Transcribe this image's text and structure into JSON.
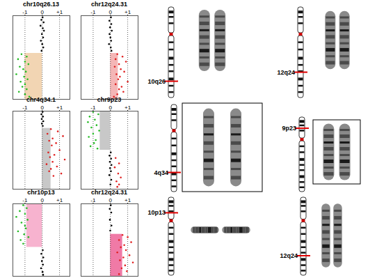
{
  "chart_data": [
    {
      "type": "scatter",
      "title": "chr10q26.13",
      "xlim": [
        -1.7,
        1.6
      ],
      "xticks": [
        -1,
        0,
        {
          "value": 1,
          "label": "+1"
        }
      ],
      "ylim": [
        0,
        100
      ],
      "grid": true,
      "tick_labels": "x",
      "segments": [
        {
          "x0": -1.0,
          "x1": 0,
          "y0": 0,
          "y1": 55,
          "color": "#f2d5b3"
        }
      ],
      "series": [
        {
          "color": "#000000",
          "x": [
            0.02,
            -0.05,
            0.08,
            -0.1,
            0.03,
            0.1,
            -0.02,
            0.05,
            -0.08,
            0.0,
            0.06,
            -0.04
          ],
          "values": [
            98,
            95,
            92,
            88,
            85,
            82,
            78,
            74,
            70,
            66,
            62,
            58
          ]
        },
        {
          "color": "#22bb22",
          "x": [
            -1.2,
            -0.9,
            -1.4,
            -1.0,
            -0.8,
            -1.3,
            -1.1,
            -0.95,
            -1.5,
            -1.05,
            -0.85,
            -1.25,
            -1.0,
            -1.15,
            -0.9,
            -1.35,
            -1.0,
            -0.75
          ],
          "values": [
            54,
            51,
            48,
            45,
            42,
            39,
            36,
            33,
            30,
            27,
            24,
            21,
            18,
            15,
            12,
            9,
            6,
            3
          ]
        }
      ]
    },
    {
      "type": "scatter",
      "title": "chr12q24.31",
      "xlim": [
        -1.7,
        1.6
      ],
      "xticks": [
        -1,
        0,
        {
          "value": 1,
          "label": "+1"
        }
      ],
      "ylim": [
        0,
        100
      ],
      "grid": true,
      "tick_labels": "x",
      "segments": [
        {
          "x0": 0,
          "x1": 0.45,
          "y0": 0,
          "y1": 55,
          "color": "#f4b6b6"
        }
      ],
      "series": [
        {
          "color": "#000000",
          "x": [
            0.03,
            -0.06,
            0.05,
            -0.02,
            0.08,
            -0.05,
            0.0,
            0.04,
            -0.08,
            0.02,
            0.06
          ],
          "values": [
            98,
            94,
            90,
            86,
            82,
            78,
            74,
            70,
            66,
            62,
            58
          ]
        },
        {
          "color": "#e02020",
          "x": [
            0.4,
            0.7,
            0.3,
            0.9,
            0.5,
            0.25,
            0.6,
            0.8,
            0.35,
            0.55,
            0.45,
            1.0,
            0.3,
            0.65,
            0.5,
            0.75,
            0.4,
            0.2
          ],
          "values": [
            54,
            51,
            48,
            45,
            42,
            39,
            36,
            33,
            30,
            27,
            24,
            21,
            18,
            15,
            12,
            9,
            6,
            3
          ]
        }
      ]
    },
    {
      "type": "scatter",
      "title": "chr4q34.1",
      "xlim": [
        -1.7,
        1.6
      ],
      "xticks": [
        -1,
        0,
        {
          "value": 1,
          "label": "+1"
        }
      ],
      "ylim": [
        0,
        100
      ],
      "grid": true,
      "tick_labels": "x",
      "segments": [
        {
          "x0": 0,
          "x1": 0.5,
          "y0": 0,
          "y1": 78,
          "color": "#c8c8c8"
        }
      ],
      "series": [
        {
          "color": "#000000",
          "x": [
            0.02,
            -0.05,
            0.04,
            -0.03,
            0.06,
            -0.02,
            0.03
          ],
          "values": [
            99,
            96,
            93,
            90,
            87,
            84,
            81
          ]
        },
        {
          "color": "#e02020",
          "x": [
            0.5,
            0.9,
            0.3,
            1.2,
            0.6,
            0.4,
            0.8,
            0.55,
            1.0,
            0.35,
            0.7,
            0.45,
            1.3,
            0.6,
            0.25,
            0.85,
            0.5,
            0.4,
            1.1,
            0.65
          ],
          "values": [
            77,
            74,
            71,
            68,
            65,
            62,
            59,
            56,
            50,
            47,
            44,
            41,
            38,
            35,
            32,
            29,
            26,
            23,
            20,
            17
          ]
        }
      ]
    },
    {
      "type": "scatter",
      "title": "chr9p23",
      "xlim": [
        -1.7,
        1.6
      ],
      "xticks": [
        -1,
        0,
        {
          "value": 1,
          "label": "+1"
        }
      ],
      "ylim": [
        0,
        100
      ],
      "grid": true,
      "tick_labels": "x",
      "segments": [
        {
          "x0": -0.6,
          "x1": 0,
          "y0": 50,
          "y1": 100,
          "color": "#c8c8c8"
        }
      ],
      "series": [
        {
          "color": "#22bb22",
          "x": [
            -1.0,
            -0.7,
            -1.2,
            -0.9,
            -1.3,
            -0.8,
            -1.1,
            -0.65,
            -1.0,
            -1.25,
            -0.85,
            -0.95,
            -1.15,
            -0.75
          ],
          "values": [
            99,
            96,
            93,
            89,
            86,
            82,
            79,
            75,
            71,
            67,
            63,
            59,
            55,
            52
          ]
        },
        {
          "color": "#000000",
          "x": [
            0.02,
            -0.05,
            0.04,
            -0.03,
            0.06,
            -0.02,
            0.03,
            -0.06,
            0.05,
            0.0
          ],
          "values": [
            47,
            43,
            39,
            35,
            31,
            27,
            23,
            18,
            12,
            6
          ]
        },
        {
          "color": "#e02020",
          "x": [
            0.3,
            0.5,
            0.25,
            0.45,
            0.6,
            0.35,
            0.5,
            0.4
          ],
          "values": [
            40,
            33,
            28,
            20,
            15,
            10,
            6,
            3
          ]
        }
      ]
    },
    {
      "type": "scatter",
      "title": "chr10p13",
      "xlim": [
        -1.7,
        1.6
      ],
      "xticks": [
        -1,
        0,
        {
          "value": 1,
          "label": "+1"
        }
      ],
      "ylim": [
        0,
        100
      ],
      "grid": true,
      "tick_labels": "x",
      "segments": [
        {
          "x0": -0.9,
          "x1": 0,
          "y0": 40,
          "y1": 100,
          "color": "#f7b3cf"
        }
      ],
      "series": [
        {
          "color": "#22bb22",
          "x": [
            -1.1,
            -0.9,
            -1.3,
            -1.0,
            -1.5,
            -0.85,
            -1.2,
            -1.0,
            -0.95,
            -1.4,
            -1.05,
            -0.8,
            -1.25,
            -1.1
          ],
          "values": [
            98,
            94,
            90,
            86,
            82,
            78,
            74,
            70,
            66,
            62,
            58,
            54,
            50,
            45
          ]
        },
        {
          "color": "#000000",
          "x": [
            0.03,
            -0.05,
            0.06,
            -0.02,
            0.04,
            -0.07,
            0.02,
            0.05
          ],
          "values": [
            36,
            31,
            26,
            21,
            16,
            11,
            6,
            2
          ]
        }
      ]
    },
    {
      "type": "scatter",
      "title": "chr12q24.31",
      "xlim": [
        -1.7,
        1.6
      ],
      "xticks": [
        -1,
        0,
        {
          "value": 1,
          "label": "+1"
        }
      ],
      "ylim": [
        0,
        100
      ],
      "grid": true,
      "tick_labels": "x",
      "segments": [
        {
          "x0": 0,
          "x1": 0.7,
          "y0": 0,
          "y1": 58,
          "color": "#f07aa6"
        }
      ],
      "series": [
        {
          "color": "#000000",
          "x": [
            0.02,
            -0.04,
            0.05,
            -0.03,
            0.06,
            -0.01
          ],
          "values": [
            98,
            93,
            88,
            78,
            70,
            63
          ]
        },
        {
          "color": "#e02020",
          "x": [
            0.7,
            1.0,
            0.5,
            1.2,
            0.8,
            0.6,
            0.9,
            0.4,
            1.1,
            0.75,
            0.55,
            1.3,
            0.85,
            0.65,
            0.95,
            0.5
          ],
          "values": [
            57,
            54,
            50,
            47,
            43,
            40,
            36,
            33,
            29,
            26,
            22,
            19,
            15,
            11,
            7,
            3
          ]
        }
      ]
    }
  ],
  "ideograms": [
    {
      "label": "10q26",
      "band_position": 0.82
    },
    {
      "label": "12q24",
      "band_position": 0.72
    },
    {
      "label": "4q34",
      "band_position": 0.78
    },
    {
      "label": "9p23",
      "band_position": 0.15
    },
    {
      "label": "10p13",
      "band_position": 0.2
    },
    {
      "label": "12q24",
      "band_position": 0.75
    }
  ]
}
